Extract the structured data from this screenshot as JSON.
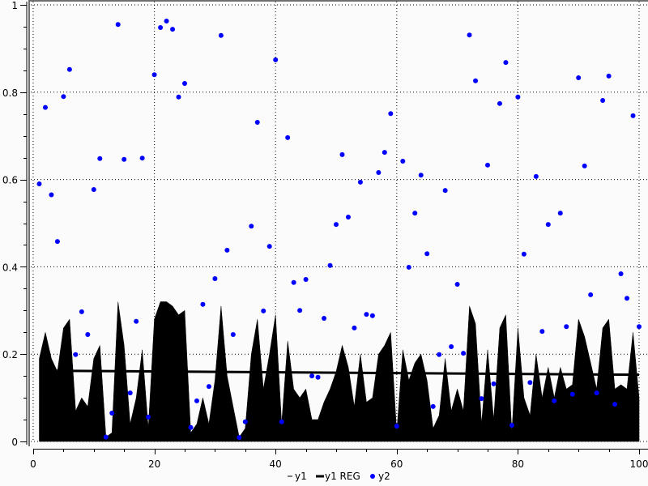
{
  "chart_data": {
    "type": "area+line+scatter",
    "title": "",
    "xlabel": "",
    "ylabel": "",
    "xlim": [
      0,
      100
    ],
    "ylim": [
      0,
      1
    ],
    "x_ticks": [
      "0",
      "20",
      "40",
      "60",
      "80",
      "100"
    ],
    "y_ticks": [
      "0",
      "0.2",
      "0.4",
      "0.6",
      "0.8",
      "1"
    ],
    "grid": true,
    "legend_position": "bottom",
    "series": [
      {
        "name": "y1",
        "kind": "filled-area",
        "color": "#000000",
        "x": [
          1,
          2,
          3,
          4,
          5,
          6,
          7,
          8,
          9,
          10,
          11,
          12,
          13,
          14,
          15,
          16,
          17,
          18,
          19,
          20,
          21,
          22,
          23,
          24,
          25,
          26,
          27,
          28,
          29,
          30,
          31,
          32,
          33,
          34,
          35,
          36,
          37,
          38,
          39,
          40,
          41,
          42,
          43,
          44,
          45,
          46,
          47,
          48,
          49,
          50,
          51,
          52,
          53,
          54,
          55,
          56,
          57,
          58,
          59,
          60,
          61,
          62,
          63,
          64,
          65,
          66,
          67,
          68,
          69,
          70,
          71,
          72,
          73,
          74,
          75,
          76,
          77,
          78,
          79,
          80,
          81,
          82,
          83,
          84,
          85,
          86,
          87,
          88,
          89,
          90,
          91,
          92,
          93,
          94,
          95,
          96,
          97,
          98,
          99,
          100
        ],
        "values": [
          0.19,
          0.25,
          0.19,
          0.16,
          0.26,
          0.28,
          0.07,
          0.1,
          0.08,
          0.19,
          0.22,
          0.01,
          0.02,
          0.32,
          0.22,
          0.04,
          0.1,
          0.21,
          0.03,
          0.28,
          0.32,
          0.32,
          0.31,
          0.29,
          0.3,
          0.02,
          0.04,
          0.1,
          0.04,
          0.14,
          0.31,
          0.15,
          0.08,
          0.01,
          0.03,
          0.2,
          0.28,
          0.12,
          0.2,
          0.29,
          0.04,
          0.23,
          0.12,
          0.1,
          0.12,
          0.05,
          0.05,
          0.09,
          0.12,
          0.16,
          0.22,
          0.17,
          0.08,
          0.2,
          0.09,
          0.1,
          0.2,
          0.22,
          0.25,
          0.02,
          0.21,
          0.14,
          0.18,
          0.2,
          0.14,
          0.03,
          0.06,
          0.19,
          0.07,
          0.12,
          0.07,
          0.31,
          0.27,
          0.04,
          0.21,
          0.05,
          0.26,
          0.29,
          0.02,
          0.26,
          0.1,
          0.06,
          0.2,
          0.1,
          0.17,
          0.1,
          0.17,
          0.12,
          0.13,
          0.28,
          0.24,
          0.18,
          0.12,
          0.26,
          0.28,
          0.12,
          0.13,
          0.12,
          0.25,
          0.1
        ]
      },
      {
        "name": "y1 REG",
        "kind": "regression-line",
        "color": "#000000"
      },
      {
        "name": "y2",
        "kind": "scatter",
        "color": "#0000ff",
        "x": [
          1,
          2,
          3,
          4,
          5,
          6,
          7,
          8,
          9,
          10,
          11,
          12,
          13,
          14,
          15,
          16,
          17,
          18,
          19,
          20,
          21,
          22,
          23,
          24,
          25,
          26,
          27,
          28,
          29,
          30,
          31,
          32,
          33,
          34,
          35,
          36,
          37,
          38,
          39,
          40,
          41,
          42,
          43,
          44,
          45,
          46,
          47,
          48,
          49,
          50,
          51,
          52,
          53,
          54,
          55,
          56,
          57,
          58,
          59,
          60,
          61,
          62,
          63,
          64,
          65,
          66,
          67,
          68,
          69,
          70,
          71,
          72,
          73,
          74,
          75,
          76,
          77,
          78,
          79,
          80,
          81,
          82,
          83,
          84,
          85,
          86,
          87,
          88,
          89,
          90,
          91,
          92,
          93,
          94,
          95,
          96,
          97,
          98,
          99,
          100
        ],
        "values": [
          0.59,
          0.765,
          0.565,
          0.458,
          0.79,
          0.852,
          0.199,
          0.297,
          0.245,
          0.577,
          0.648,
          0.01,
          0.065,
          0.955,
          0.646,
          0.111,
          0.275,
          0.649,
          0.056,
          0.84,
          0.948,
          0.963,
          0.944,
          0.789,
          0.82,
          0.032,
          0.093,
          0.314,
          0.126,
          0.373,
          0.93,
          0.438,
          0.245,
          0.009,
          0.045,
          0.493,
          0.731,
          0.299,
          0.447,
          0.874,
          0.045,
          0.696,
          0.364,
          0.3,
          0.371,
          0.15,
          0.147,
          0.282,
          0.403,
          0.497,
          0.657,
          0.514,
          0.26,
          0.594,
          0.291,
          0.288,
          0.616,
          0.662,
          0.751,
          0.035,
          0.642,
          0.399,
          0.523,
          0.61,
          0.43,
          0.08,
          0.199,
          0.575,
          0.217,
          0.36,
          0.202,
          0.931,
          0.826,
          0.098,
          0.633,
          0.132,
          0.774,
          0.868,
          0.037,
          0.789,
          0.429,
          0.135,
          0.607,
          0.252,
          0.497,
          0.093,
          0.523,
          0.263,
          0.108,
          0.833,
          0.631,
          0.336,
          0.111,
          0.781,
          0.837,
          0.085,
          0.384,
          0.328,
          0.746,
          0.263
        ]
      }
    ]
  },
  "legend": {
    "items": [
      {
        "label": "y1",
        "symbol": "thin-line"
      },
      {
        "label": "y1 REG",
        "symbol": "thick-line"
      },
      {
        "label": "y2",
        "symbol": "dot"
      }
    ]
  },
  "colors": {
    "background": "#fbfbfb",
    "frame": "#707070",
    "area": "#000000",
    "points": "#0000ff"
  }
}
